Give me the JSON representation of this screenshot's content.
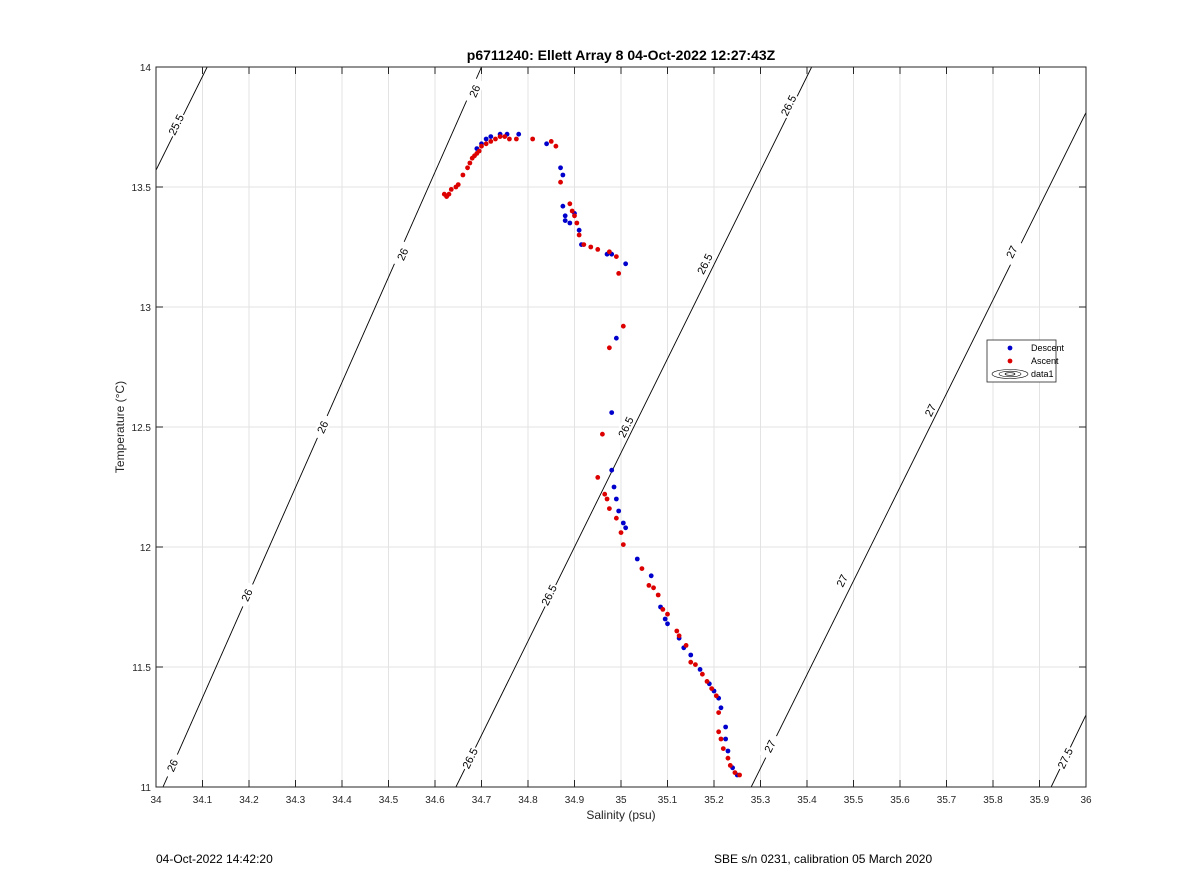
{
  "chart_data": {
    "type": "scatter",
    "title": "p6711240: Ellett Array 8 04-Oct-2022 12:27:43Z",
    "xlabel": "Salinity (psu)",
    "ylabel": "Temperature (°C)",
    "xlim": [
      34,
      36
    ],
    "ylim": [
      11,
      14
    ],
    "x_ticks": [
      34,
      34.1,
      34.2,
      34.3,
      34.4,
      34.5,
      34.6,
      34.7,
      34.8,
      34.9,
      35,
      35.1,
      35.2,
      35.3,
      35.4,
      35.5,
      35.6,
      35.7,
      35.8,
      35.9,
      36
    ],
    "x_tick_labels": [
      "34",
      "34.1",
      "34.2",
      "34.3",
      "34.4",
      "34.5",
      "34.6",
      "34.7",
      "34.8",
      "34.9",
      "35",
      "35.1",
      "35.2",
      "35.3",
      "35.4",
      "35.5",
      "35.6",
      "35.7",
      "35.8",
      "35.9",
      "36"
    ],
    "y_ticks": [
      11,
      11.5,
      12,
      12.5,
      13,
      13.5,
      14
    ],
    "y_tick_labels": [
      "11",
      "11.5",
      "12",
      "12.5",
      "13",
      "13.5",
      "14"
    ],
    "grid": true,
    "legend_position": "right",
    "legend": [
      "Descent",
      "Ascent",
      "data1"
    ],
    "colors": {
      "descent": "#0000cc",
      "ascent": "#dd0000",
      "contour": "#000000",
      "grid": "#e3e3e3",
      "axis": "#262626"
    },
    "contours": [
      {
        "level": "25.5",
        "points": [
          [
            34.0,
            13.57
          ],
          [
            34.11,
            14.0
          ]
        ],
        "labels": [
          {
            "x": 34.043,
            "y": 13.76,
            "text": "25.5"
          }
        ]
      },
      {
        "level": "26",
        "points": [
          [
            34.015,
            11.0
          ],
          [
            34.7,
            14.0
          ]
        ],
        "labels": [
          {
            "x": 34.035,
            "y": 11.09,
            "text": "26"
          },
          {
            "x": 34.195,
            "y": 11.8,
            "text": "26"
          },
          {
            "x": 34.358,
            "y": 12.5,
            "text": "26"
          },
          {
            "x": 34.53,
            "y": 13.22,
            "text": "26"
          },
          {
            "x": 34.685,
            "y": 13.9,
            "text": "26"
          }
        ]
      },
      {
        "level": "26.5",
        "points": [
          [
            34.645,
            11.0
          ],
          [
            35.41,
            14.0
          ]
        ],
        "labels": [
          {
            "x": 34.675,
            "y": 11.12,
            "text": "26.5"
          },
          {
            "x": 34.845,
            "y": 11.8,
            "text": "26.5"
          },
          {
            "x": 35.01,
            "y": 12.5,
            "text": "26.5"
          },
          {
            "x": 35.18,
            "y": 13.18,
            "text": "26.5"
          },
          {
            "x": 35.36,
            "y": 13.84,
            "text": "26.5"
          }
        ]
      },
      {
        "level": "27",
        "points": [
          [
            35.28,
            11.0
          ],
          [
            36.0,
            13.81
          ]
        ],
        "labels": [
          {
            "x": 35.32,
            "y": 11.17,
            "text": "27"
          },
          {
            "x": 35.475,
            "y": 11.86,
            "text": "27"
          },
          {
            "x": 35.665,
            "y": 12.57,
            "text": "27"
          },
          {
            "x": 35.84,
            "y": 13.23,
            "text": "27"
          }
        ]
      },
      {
        "level": "27.5",
        "points": [
          [
            35.925,
            11.0
          ],
          [
            36.0,
            11.3
          ]
        ],
        "labels": [
          {
            "x": 35.955,
            "y": 11.12,
            "text": "27.5"
          }
        ]
      }
    ],
    "series": [
      {
        "name": "Descent",
        "points": [
          [
            34.69,
            13.66
          ],
          [
            34.7,
            13.68
          ],
          [
            34.71,
            13.7
          ],
          [
            34.72,
            13.71
          ],
          [
            34.74,
            13.72
          ],
          [
            34.755,
            13.72
          ],
          [
            34.78,
            13.72
          ],
          [
            34.84,
            13.68
          ],
          [
            34.87,
            13.58
          ],
          [
            34.875,
            13.55
          ],
          [
            34.875,
            13.42
          ],
          [
            34.88,
            13.38
          ],
          [
            34.88,
            13.36
          ],
          [
            34.89,
            13.35
          ],
          [
            34.9,
            13.39
          ],
          [
            34.91,
            13.32
          ],
          [
            34.915,
            13.26
          ],
          [
            34.97,
            13.22
          ],
          [
            34.98,
            13.22
          ],
          [
            35.01,
            13.18
          ],
          [
            34.99,
            12.87
          ],
          [
            34.98,
            12.56
          ],
          [
            34.98,
            12.32
          ],
          [
            34.985,
            12.25
          ],
          [
            34.99,
            12.2
          ],
          [
            34.995,
            12.15
          ],
          [
            35.005,
            12.1
          ],
          [
            35.01,
            12.08
          ],
          [
            35.035,
            11.95
          ],
          [
            35.065,
            11.88
          ],
          [
            35.085,
            11.75
          ],
          [
            35.095,
            11.7
          ],
          [
            35.1,
            11.68
          ],
          [
            35.125,
            11.62
          ],
          [
            35.135,
            11.58
          ],
          [
            35.15,
            11.55
          ],
          [
            35.17,
            11.49
          ],
          [
            35.19,
            11.43
          ],
          [
            35.2,
            11.4
          ],
          [
            35.21,
            11.37
          ],
          [
            35.215,
            11.33
          ],
          [
            35.225,
            11.25
          ],
          [
            35.225,
            11.2
          ],
          [
            35.23,
            11.15
          ],
          [
            35.24,
            11.08
          ],
          [
            35.25,
            11.05
          ]
        ]
      },
      {
        "name": "Ascent",
        "points": [
          [
            34.62,
            13.47
          ],
          [
            34.625,
            13.46
          ],
          [
            34.63,
            13.47
          ],
          [
            34.635,
            13.49
          ],
          [
            34.645,
            13.5
          ],
          [
            34.65,
            13.51
          ],
          [
            34.66,
            13.55
          ],
          [
            34.67,
            13.58
          ],
          [
            34.675,
            13.6
          ],
          [
            34.68,
            13.62
          ],
          [
            34.685,
            13.63
          ],
          [
            34.69,
            13.64
          ],
          [
            34.695,
            13.65
          ],
          [
            34.7,
            13.67
          ],
          [
            34.71,
            13.68
          ],
          [
            34.72,
            13.69
          ],
          [
            34.73,
            13.7
          ],
          [
            34.74,
            13.71
          ],
          [
            34.75,
            13.71
          ],
          [
            34.76,
            13.7
          ],
          [
            34.775,
            13.7
          ],
          [
            34.81,
            13.7
          ],
          [
            34.85,
            13.69
          ],
          [
            34.86,
            13.67
          ],
          [
            34.87,
            13.52
          ],
          [
            34.89,
            13.43
          ],
          [
            34.895,
            13.4
          ],
          [
            34.9,
            13.38
          ],
          [
            34.905,
            13.35
          ],
          [
            34.91,
            13.3
          ],
          [
            34.92,
            13.26
          ],
          [
            34.935,
            13.25
          ],
          [
            34.95,
            13.24
          ],
          [
            34.975,
            13.23
          ],
          [
            34.99,
            13.21
          ],
          [
            34.995,
            13.14
          ],
          [
            35.005,
            12.92
          ],
          [
            34.975,
            12.83
          ],
          [
            34.96,
            12.47
          ],
          [
            34.95,
            12.29
          ],
          [
            34.965,
            12.22
          ],
          [
            34.97,
            12.2
          ],
          [
            34.975,
            12.16
          ],
          [
            34.99,
            12.12
          ],
          [
            35.0,
            12.06
          ],
          [
            35.005,
            12.01
          ],
          [
            35.045,
            11.91
          ],
          [
            35.06,
            11.84
          ],
          [
            35.07,
            11.83
          ],
          [
            35.08,
            11.8
          ],
          [
            35.09,
            11.74
          ],
          [
            35.1,
            11.72
          ],
          [
            35.12,
            11.65
          ],
          [
            35.125,
            11.63
          ],
          [
            35.14,
            11.59
          ],
          [
            35.15,
            11.52
          ],
          [
            35.16,
            11.51
          ],
          [
            35.175,
            11.47
          ],
          [
            35.185,
            11.44
          ],
          [
            35.195,
            11.41
          ],
          [
            35.205,
            11.38
          ],
          [
            35.21,
            11.31
          ],
          [
            35.21,
            11.23
          ],
          [
            35.215,
            11.2
          ],
          [
            35.22,
            11.16
          ],
          [
            35.23,
            11.12
          ],
          [
            35.235,
            11.09
          ],
          [
            35.245,
            11.06
          ],
          [
            35.255,
            11.05
          ]
        ]
      }
    ]
  },
  "footer": {
    "left": "04-Oct-2022 14:42:20",
    "right": "SBE s/n 0231, calibration 05 March 2020"
  }
}
